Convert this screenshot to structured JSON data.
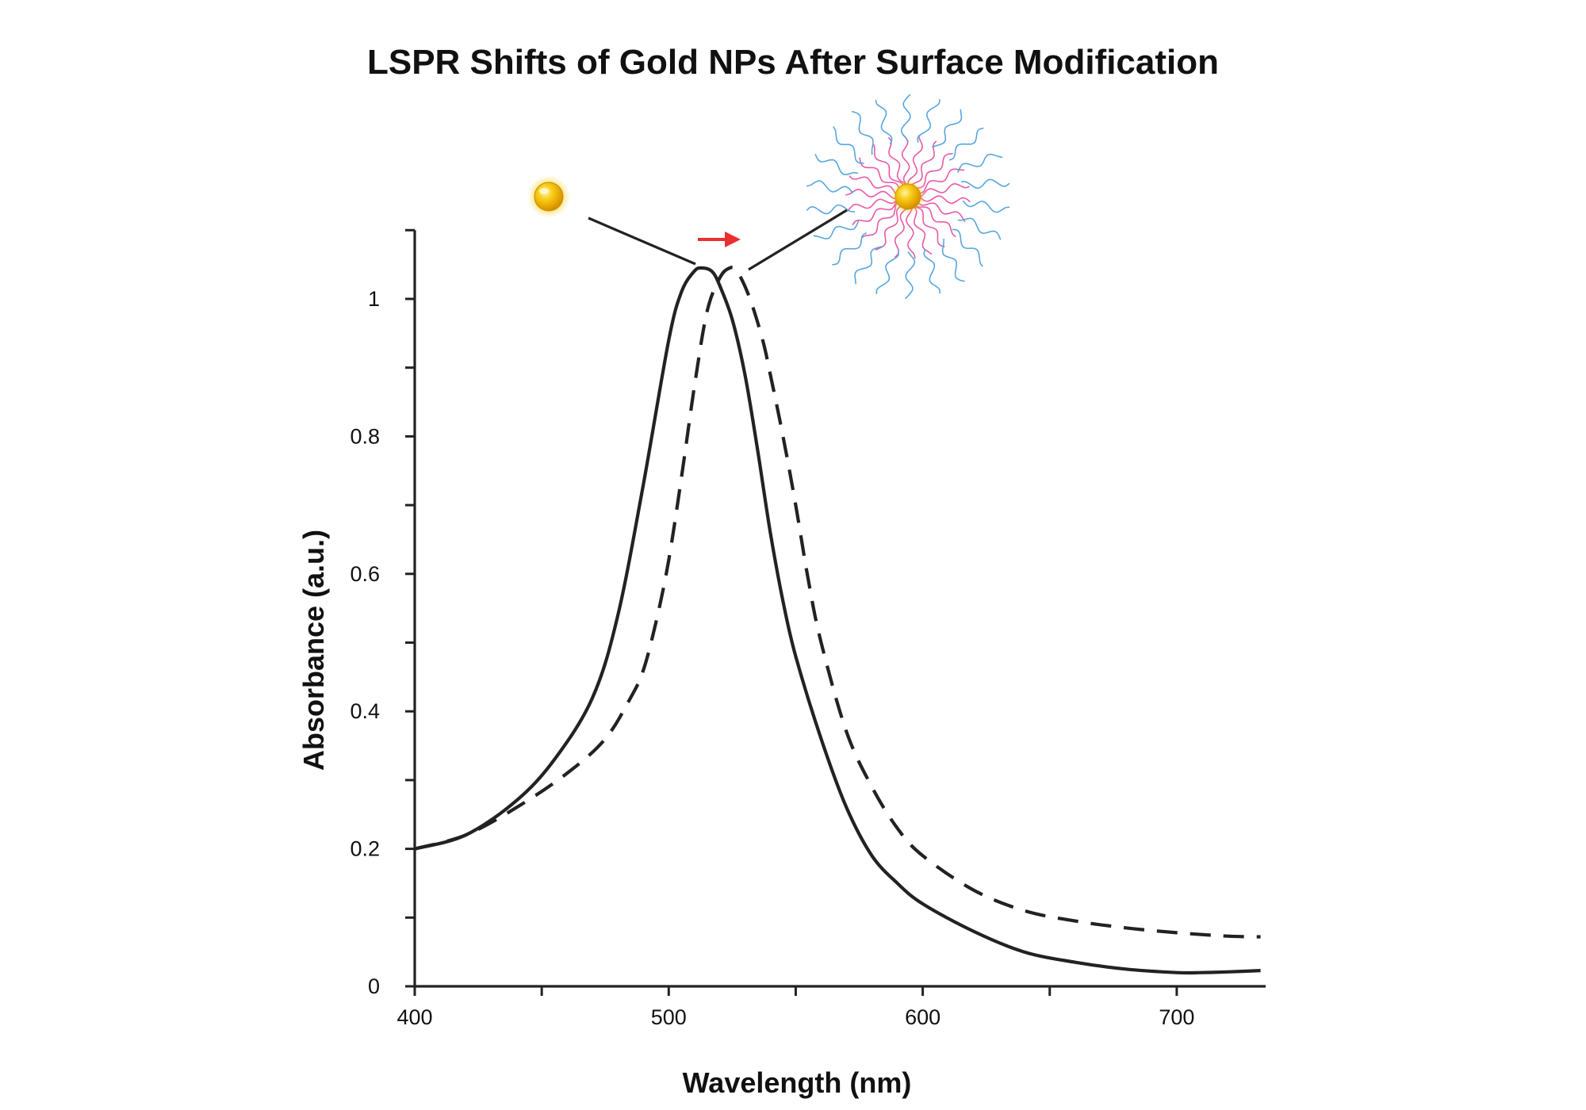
{
  "chart_data": {
    "type": "line",
    "title": "LSPR Shifts of Gold NPs After Surface Modification",
    "xlabel": "Wavelength (nm)",
    "ylabel": "Absorbance (a.u.)",
    "xlim": [
      400,
      735
    ],
    "ylim": [
      0,
      1.1
    ],
    "xticks": [
      400,
      500,
      600,
      700
    ],
    "xtick_labels": [
      "400",
      "500",
      "600",
      "700"
    ],
    "yticks": [
      0,
      0.2,
      0.4,
      0.6,
      0.8,
      1
    ],
    "ytick_labels": [
      "0",
      "0.2",
      "0.4",
      "0.6",
      "0.8",
      "1"
    ],
    "grid": false,
    "legend": "none",
    "series": [
      {
        "name": "bare gold nanoparticle",
        "style": "solid",
        "color": "#222222",
        "x": [
          400,
          420,
          440,
          455,
          470,
          480,
          490,
          500,
          505,
          510,
          513,
          517,
          520,
          525,
          530,
          535,
          540,
          545,
          550,
          560,
          570,
          580,
          590,
          600,
          620,
          640,
          660,
          680,
          700,
          710,
          720,
          733
        ],
        "y": [
          0.2,
          0.22,
          0.27,
          0.33,
          0.42,
          0.54,
          0.73,
          0.94,
          1.01,
          1.04,
          1.045,
          1.04,
          1.02,
          0.97,
          0.89,
          0.78,
          0.66,
          0.56,
          0.48,
          0.36,
          0.26,
          0.19,
          0.15,
          0.12,
          0.08,
          0.05,
          0.035,
          0.025,
          0.02,
          0.02,
          0.021,
          0.023
        ]
      },
      {
        "name": "surface-modified gold nanoparticle",
        "style": "dashed",
        "color": "#222222",
        "x": [
          400,
          420,
          440,
          460,
          475,
          485,
          490,
          495,
          500,
          505,
          510,
          515,
          520,
          524,
          527,
          532,
          537,
          540,
          545,
          550,
          555,
          560,
          570,
          580,
          590,
          600,
          620,
          640,
          660,
          680,
          700,
          720,
          733
        ],
        "y": [
          0.2,
          0.22,
          0.26,
          0.31,
          0.36,
          0.42,
          0.46,
          0.53,
          0.62,
          0.74,
          0.87,
          0.98,
          1.03,
          1.045,
          1.04,
          1.0,
          0.94,
          0.89,
          0.8,
          0.7,
          0.59,
          0.5,
          0.37,
          0.29,
          0.23,
          0.19,
          0.14,
          0.11,
          0.095,
          0.085,
          0.078,
          0.073,
          0.072
        ]
      }
    ],
    "annotations": [
      {
        "label": "bare gold nanoparticle icon",
        "points_to_wavelength": 512
      },
      {
        "label": "surface-modified nanoparticle with ligand shell icon",
        "points_to_wavelength": 528
      },
      {
        "label": "red shift arrow"
      }
    ]
  },
  "colors": {
    "axis": "#222222",
    "curve": "#222222",
    "shift_arrow": "#e8302f",
    "gold": "#f5c00a",
    "ligand_pink": "#e85aa6",
    "ligand_blue": "#57a6e0"
  }
}
